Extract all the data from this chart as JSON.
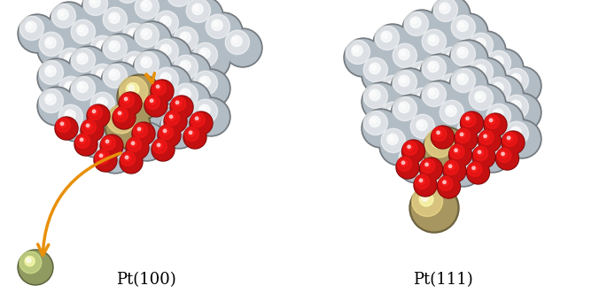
{
  "label_left": "Pt(100)",
  "label_right": "Pt(111)",
  "background_color": "#ffffff",
  "label_fontsize": 13,
  "colors": {
    "pt_surface": "#b2bcc4",
    "pt_dissolving": "#a89660",
    "oxygen": "#c41010",
    "pt_leaving": "#8f9a60"
  },
  "figsize": [
    6.85,
    3.4
  ],
  "dpi": 100
}
